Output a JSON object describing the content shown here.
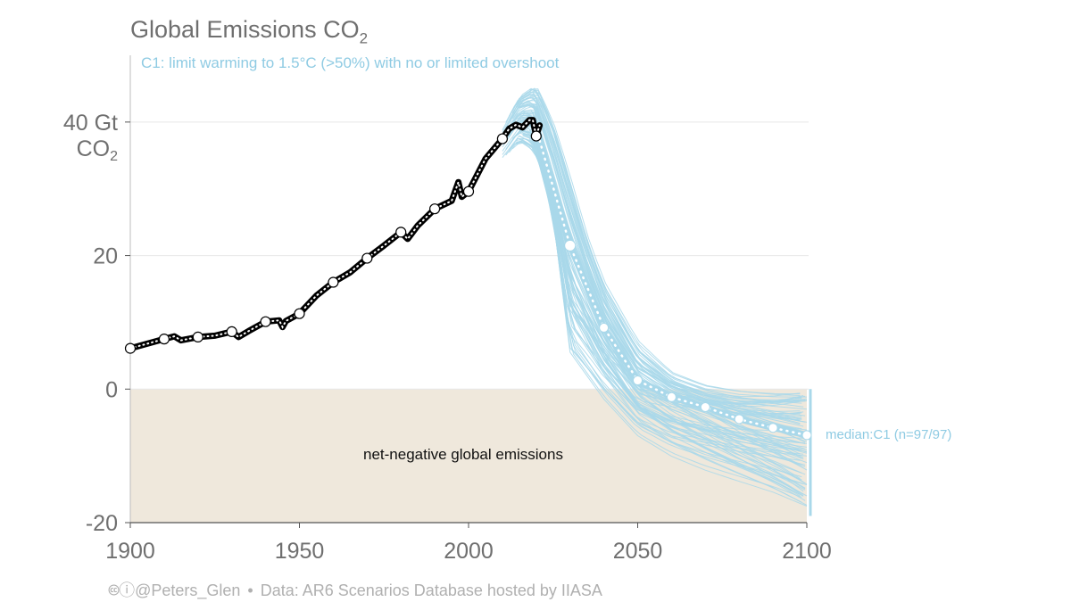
{
  "title": "Global Emissions CO",
  "title_sub": "2",
  "subtitle": "C1: limit warming to 1.5°C (>50%) with no or limited overshoot",
  "footer": {
    "handle": "@Peters_Glen",
    "source": "Data: AR6 Scenarios Database hosted by IIASA"
  },
  "annotations": {
    "negative_zone": "net-negative global emissions",
    "median_label": "median:C1 (n=97/97)"
  },
  "colors": {
    "historical": "#000000",
    "scenarios": "#a9d8ea",
    "median": "#a9d8ea",
    "negative_zone": "#efe8dc",
    "grid": "#e8e8e8"
  },
  "chart_data": {
    "type": "line",
    "title": "Global Emissions CO2",
    "subtitle": "C1: limit warming to 1.5°C (>50%) with no or limited overshoot",
    "ylabel_top": [
      "40 Gt",
      "CO2"
    ],
    "xlim": [
      1900,
      2100
    ],
    "ylim": [
      -20,
      50
    ],
    "x_ticks": [
      1900,
      1950,
      2000,
      2050,
      2100
    ],
    "y_ticks": [
      -20,
      0,
      20,
      40
    ],
    "y_tick_labels": [
      "-20",
      "0",
      "20",
      "40 Gt"
    ],
    "grid": "horizontal",
    "series": [
      {
        "name": "historical",
        "style": "black line with white markers",
        "x": [
          1900,
          1905,
          1910,
          1913,
          1915,
          1920,
          1925,
          1930,
          1932,
          1935,
          1940,
          1944,
          1945,
          1946,
          1950,
          1955,
          1960,
          1965,
          1970,
          1975,
          1980,
          1982,
          1985,
          1990,
          1995,
          1997,
          1998,
          2000,
          2005,
          2010,
          2012,
          2014,
          2016,
          2018,
          2019,
          2020,
          2021
        ],
        "y": [
          6.1,
          6.8,
          7.5,
          7.9,
          7.3,
          7.8,
          8.0,
          8.6,
          7.8,
          8.7,
          10.1,
          10.3,
          9.3,
          10.2,
          11.3,
          14.0,
          16.0,
          17.5,
          19.6,
          21.5,
          23.5,
          22.5,
          24.5,
          27.0,
          28.2,
          31.0,
          28.8,
          29.6,
          34.5,
          37.5,
          39.0,
          39.6,
          39.2,
          40.3,
          40.3,
          37.9,
          39.5
        ],
        "markers_x": [
          1900,
          1910,
          1920,
          1930,
          1940,
          1950,
          1960,
          1970,
          1980,
          1990,
          2000,
          2010,
          2020
        ],
        "markers_y": [
          6.1,
          7.5,
          7.8,
          8.6,
          10.1,
          11.3,
          16.0,
          19.6,
          23.5,
          27.0,
          29.6,
          37.5,
          37.9
        ]
      },
      {
        "name": "median:C1 (n=97/97)",
        "style": "light blue dotted with white markers",
        "x": [
          2020,
          2030,
          2040,
          2050,
          2060,
          2070,
          2080,
          2090,
          2100
        ],
        "y": [
          39.0,
          21.5,
          9.2,
          1.3,
          -1.2,
          -2.7,
          -4.5,
          -5.8,
          -6.9
        ]
      }
    ],
    "scenario_band": {
      "name": "C1 scenarios",
      "count": 97,
      "x": [
        2010,
        2015,
        2020,
        2025,
        2030,
        2035,
        2040,
        2050,
        2060,
        2070,
        2080,
        2090,
        2100
      ],
      "min": [
        34,
        37,
        35,
        25,
        3,
        0,
        -3,
        -8,
        -11,
        -13,
        -14.5,
        -16,
        -18
      ],
      "max": [
        39,
        44,
        46,
        41,
        33,
        24,
        17,
        8,
        3,
        1,
        0.3,
        0,
        0
      ]
    }
  }
}
